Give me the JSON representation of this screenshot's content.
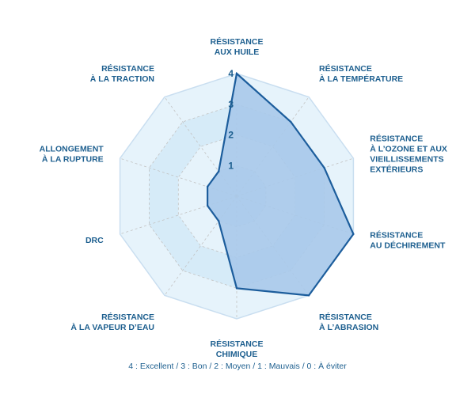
{
  "chart_data": {
    "type": "radar",
    "axes": [
      [
        "RÉSISTANCE",
        "AUX HUILE"
      ],
      [
        "RÉSISTANCE",
        "À LA TEMPÉRATURE"
      ],
      [
        "RÉSISTANCE",
        "À L’OZONE ET AUX",
        "VIEILLISSEMENTS",
        "EXTÉRIEURS"
      ],
      [
        "RÉSISTANCE",
        "AU DÉCHIREMENT"
      ],
      [
        "RÉSISTANCE",
        "À L’ABRASION"
      ],
      [
        "RÉSISTANCE",
        "CHIMIQUE"
      ],
      [
        "RÉSISTANCE",
        "À LA VAPEUR D’EAU"
      ],
      [
        "DRC"
      ],
      [
        "ALLONGEMENT",
        "À LA RUPTURE"
      ],
      [
        "RÉSISTANCE",
        "À LA TRACTION"
      ]
    ],
    "values": [
      4,
      3,
      3,
      4,
      4,
      3,
      1,
      1,
      1,
      1
    ],
    "ticks": [
      "1",
      "2",
      "3",
      "4"
    ],
    "range": [
      0,
      4
    ],
    "legend": "4 : Excellent / 3 : Bon / 2 :  Moyen / 1 : Mauvais / 0 : À éviter",
    "colors": {
      "ring_fill": "#e6f3fb",
      "ring_fill_inner": "#d6ebf8",
      "ring_stroke": "#ffffff",
      "outer_stroke": "#c9def0",
      "grid_dashed": "#c2c2c2",
      "series_fill": "#a9c9ea",
      "series_stroke": "#1c5d9c",
      "text": "#1d5f8f"
    }
  }
}
